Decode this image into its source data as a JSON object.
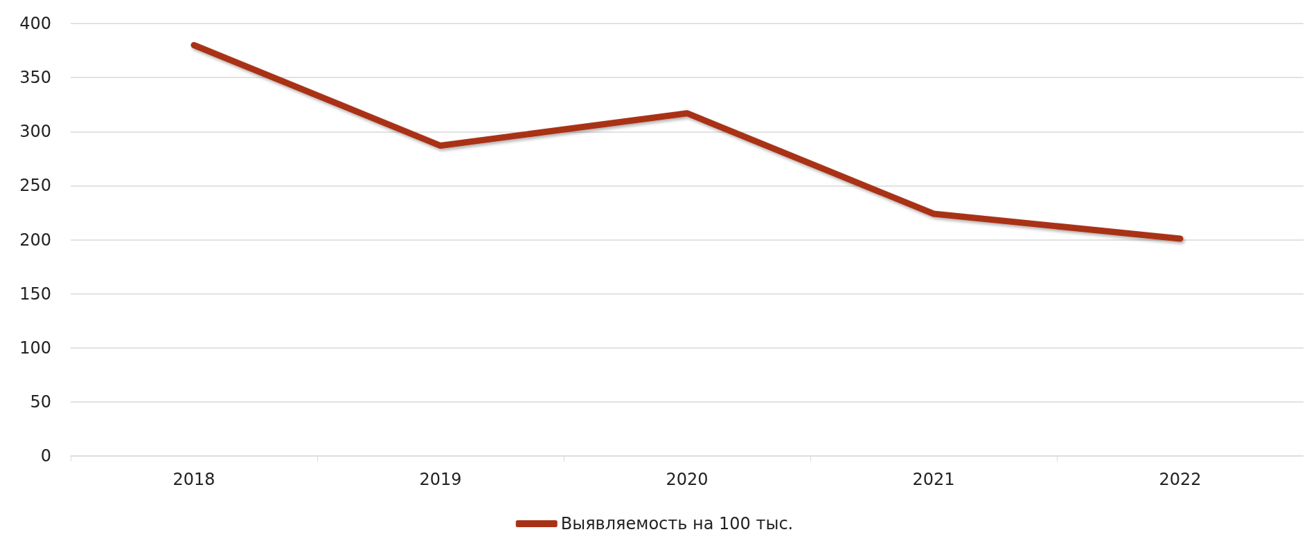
{
  "chart_data": {
    "type": "line",
    "categories": [
      "2018",
      "2019",
      "2020",
      "2021",
      "2022"
    ],
    "series": [
      {
        "name": "Выявляемость на 100 тыс.",
        "color": "#a93216",
        "values": [
          380,
          287,
          317,
          224,
          201
        ]
      }
    ],
    "ylim": [
      0,
      400
    ],
    "yticks": [
      0,
      50,
      100,
      150,
      200,
      250,
      300,
      350,
      400
    ],
    "grid": "y",
    "legend": "bottom",
    "marker": "none",
    "line_style": "solid"
  }
}
